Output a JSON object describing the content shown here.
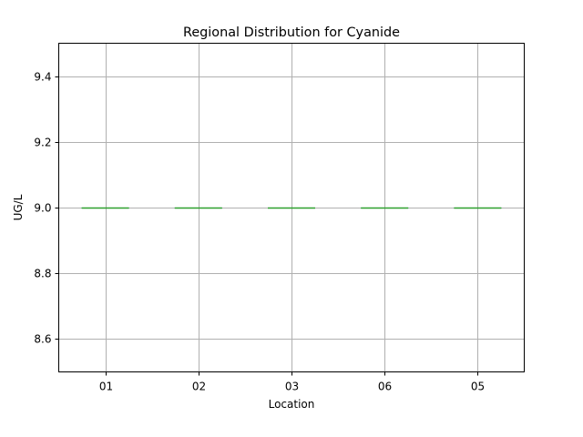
{
  "chart_data": {
    "type": "box",
    "title": "Regional Distribution for Cyanide",
    "xlabel": "Location",
    "ylabel": "UG/L",
    "categories": [
      "01",
      "02",
      "03",
      "06",
      "05"
    ],
    "values": [
      9.0,
      9.0,
      9.0,
      9.0,
      9.0
    ],
    "ylim": [
      8.5,
      9.5
    ],
    "yticks": [
      8.6,
      8.8,
      9.0,
      9.2,
      9.4
    ],
    "grid": true,
    "colors": {
      "box": "#1f77b4",
      "median": "#2ca02c",
      "grid": "#b0b0b0"
    }
  }
}
